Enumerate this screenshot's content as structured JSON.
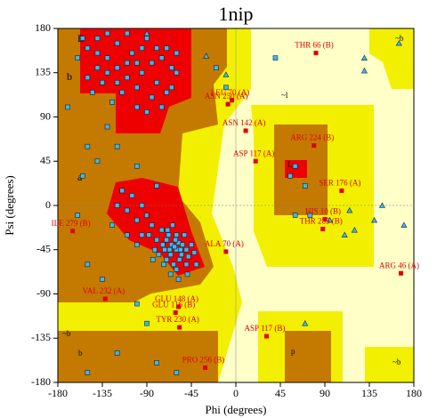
{
  "chart_data": {
    "type": "scatter",
    "title": "1nip",
    "xlabel": "Phi (degrees)",
    "ylabel": "Psi (degrees)",
    "xlim": [
      -180,
      180
    ],
    "ylim": [
      -180,
      180
    ],
    "xticks": [
      -180,
      -135,
      -90,
      -45,
      0,
      45,
      90,
      135,
      180
    ],
    "yticks": [
      -180,
      -135,
      -90,
      -45,
      0,
      45,
      90,
      135,
      180
    ],
    "region_labels": [
      "B",
      "b",
      "a",
      "L",
      "~b",
      "~l",
      "~b",
      "b",
      "p",
      "~b"
    ],
    "series": [
      {
        "marker": "square",
        "color": "#3fb8e8",
        "x": [
          -150,
          -140,
          -130,
          -120,
          -110,
          -100,
          -95,
          -85,
          -75,
          -70,
          -65,
          -120,
          -135,
          -140,
          -105,
          -90,
          -80,
          -60,
          -115,
          -125,
          -150,
          -160,
          -100,
          -85,
          -70,
          -130,
          -110,
          -95,
          -145,
          -155,
          -75,
          -65,
          -100,
          -120,
          -90,
          -140,
          -80,
          -60,
          -110,
          -130,
          -65,
          -60,
          -70,
          -55,
          -62,
          -68,
          -75,
          -58,
          -50,
          -72,
          -80,
          -66,
          -60,
          -54,
          -64,
          -70,
          -85,
          -90,
          -95,
          -100,
          -110,
          -78,
          -63,
          -57,
          -48,
          -45,
          -52,
          -67,
          -74,
          -61,
          -56,
          -69,
          -82,
          -88,
          -105,
          -115,
          -120,
          -95,
          -60,
          -50,
          -42,
          -40,
          -73,
          -84,
          -66,
          -58,
          -49,
          -100,
          -110,
          -125,
          -155,
          -150,
          -140,
          -130,
          -170,
          -120,
          -100,
          -80,
          -160,
          -150,
          -135,
          -90,
          -80,
          -150,
          -120,
          -60,
          40,
          60,
          55,
          70,
          75,
          60,
          -10,
          -20,
          -100
        ],
        "values": [
          160,
          170,
          150,
          140,
          130,
          120,
          135,
          145,
          150,
          160,
          140,
          165,
          125,
          140,
          155,
          170,
          125,
          135,
          115,
          105,
          130,
          150,
          100,
          110,
          115,
          175,
          175,
          160,
          115,
          170,
          100,
          120,
          145,
          125,
          95,
          155,
          160,
          155,
          145,
          135,
          -40,
          -45,
          -35,
          -50,
          -42,
          -30,
          -25,
          -38,
          -45,
          -45,
          -35,
          -50,
          -30,
          -40,
          -20,
          -55,
          -20,
          -10,
          0,
          -15,
          -5,
          -50,
          -60,
          -55,
          -52,
          -40,
          -30,
          -45,
          -40,
          -35,
          -45,
          -25,
          -45,
          -30,
          10,
          15,
          0,
          -30,
          -65,
          -60,
          -48,
          -60,
          -60,
          -55,
          -70,
          -75,
          -70,
          -40,
          -30,
          -20,
          30,
          60,
          45,
          80,
          100,
          60,
          40,
          20,
          -10,
          -60,
          -75,
          -120,
          -160,
          -170,
          -150,
          -170,
          150,
          40,
          30,
          20,
          -10,
          -10,
          120,
          140,
          -100
        ]
      },
      {
        "marker": "triangle",
        "color": "#3fb8e8",
        "x": [
          -90,
          165,
          130,
          130,
          115,
          148,
          140,
          110,
          120,
          170,
          -30,
          -10,
          70,
          95
        ],
        "values": [
          175,
          165,
          150,
          137,
          -5,
          0,
          -15,
          -30,
          -25,
          -20,
          152,
          133,
          -120,
          -15
        ]
      },
      {
        "marker": "square",
        "color": "#e00000",
        "x": [
          81,
          -4,
          -8,
          10,
          79,
          20,
          107,
          90,
          88,
          -68,
          -165,
          -10,
          167,
          -132,
          -58,
          -61,
          -57,
          31,
          -31
        ],
        "values": [
          155,
          107,
          103,
          76,
          61,
          45,
          15,
          -14,
          -24,
          -19,
          -26,
          -47,
          -69,
          -95,
          -103,
          -109,
          -124,
          -133,
          -165
        ],
        "labels": [
          "THR 66 (B)",
          "LEU 70 (A)",
          "ASN 250 (A)",
          "ASN 142 (A)",
          "ARG 224 (B)",
          "ASP 117 (A)",
          "SER 176 (A)",
          "HIS 10 (B)",
          "THR 285 (B)",
          "ILE 222 (B)",
          "ILE 279 (B)",
          "ALA 70 (A)",
          "ARG 46 (A)",
          "VAL 232 (A)",
          "GLU 148 (A)",
          "GLU 116 (B)",
          "TYR 230 (A)",
          "ASP 117 (B)",
          "PRO 256 (B)"
        ]
      }
    ]
  }
}
